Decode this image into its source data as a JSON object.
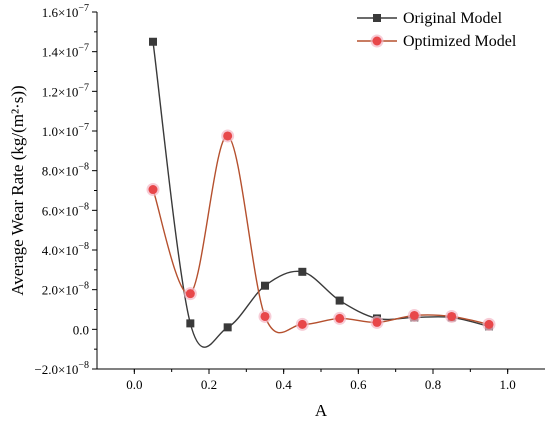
{
  "chart_data": {
    "type": "line",
    "title": "",
    "xlabel": "A",
    "ylabel": "Average Wear Rate (kg/(m²·s))",
    "xlim": [
      -0.1,
      1.1
    ],
    "ylim": [
      -2e-08,
      1.6e-07
    ],
    "x_ticks": [
      0.0,
      0.2,
      0.4,
      0.6,
      0.8,
      1.0
    ],
    "x_tick_labels": [
      "0.0",
      "0.2",
      "0.4",
      "0.6",
      "0.8",
      "1.0"
    ],
    "y_ticks": [
      -2e-08,
      0,
      2e-08,
      4e-08,
      6e-08,
      8e-08,
      1e-07,
      1.2e-07,
      1.4e-07,
      1.6e-07
    ],
    "y_tick_labels": [
      {
        "mantissa": "−2.0×10",
        "exp": "−8"
      },
      {
        "mantissa": "0.0",
        "exp": ""
      },
      {
        "mantissa": "2.0×10",
        "exp": "−8"
      },
      {
        "mantissa": "4.0×10",
        "exp": "−8"
      },
      {
        "mantissa": "6.0×10",
        "exp": "−8"
      },
      {
        "mantissa": "8.0×10",
        "exp": "−8"
      },
      {
        "mantissa": "1.0×10",
        "exp": "−7"
      },
      {
        "mantissa": "1.2×10",
        "exp": "−7"
      },
      {
        "mantissa": "1.4×10",
        "exp": "−7"
      },
      {
        "mantissa": "1.6×10",
        "exp": "−7"
      }
    ],
    "x": [
      0.05,
      0.15,
      0.25,
      0.35,
      0.45,
      0.55,
      0.65,
      0.75,
      0.85,
      0.95
    ],
    "series": [
      {
        "name": "Original Model",
        "color": "#3a3a3a",
        "marker": "square",
        "values": [
          1.45e-07,
          3e-09,
          1e-09,
          2.2e-08,
          2.9e-08,
          1.45e-08,
          5.5e-09,
          6e-09,
          6e-09,
          1.5e-09
        ]
      },
      {
        "name": "Optimized Model",
        "color": "#b5502e",
        "marker_fill": "#e8474a",
        "marker": "circle",
        "values": [
          7.05e-08,
          1.8e-08,
          9.75e-08,
          6.5e-09,
          2.5e-09,
          5.5e-09,
          3.5e-09,
          7e-09,
          6.5e-09,
          2.5e-09
        ]
      }
    ],
    "legend": "top-right",
    "grid": false
  }
}
